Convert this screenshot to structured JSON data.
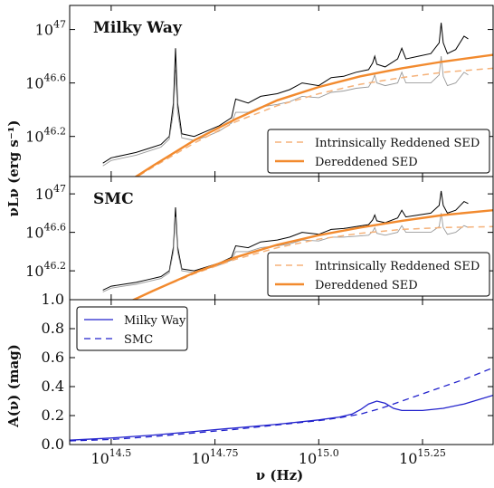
{
  "chart_data": [
    {
      "type": "line",
      "panel_title": "Milky Way",
      "ylabel": "νLν (erg s⁻¹)",
      "y_scale": "log",
      "y_ticks": [
        {
          "value": 46.2,
          "base": "10",
          "exp": "46.2"
        },
        {
          "value": 46.6,
          "base": "10",
          "exp": "46.6"
        },
        {
          "value": 47.0,
          "base": "10",
          "exp": "47"
        }
      ],
      "ylim_log": [
        45.9,
        47.18
      ],
      "xlim_log": [
        14.4,
        15.42
      ],
      "legend_position": "lower-right",
      "series": [
        {
          "name": "Intrinsically Reddened SED",
          "style": "dashed",
          "color": "#f5b27a",
          "x": [
            14.5,
            14.6,
            14.7,
            14.8,
            14.9,
            15.0,
            15.1,
            15.2,
            15.3,
            15.42
          ],
          "y": [
            45.78,
            45.97,
            46.15,
            46.31,
            46.43,
            46.52,
            46.59,
            46.64,
            46.68,
            46.71
          ]
        },
        {
          "name": "Dereddened SED",
          "style": "solid",
          "color": "#f28a2e",
          "x": [
            14.5,
            14.6,
            14.7,
            14.8,
            14.9,
            15.0,
            15.1,
            15.2,
            15.3,
            15.42
          ],
          "y": [
            45.78,
            45.98,
            46.17,
            46.33,
            46.47,
            46.57,
            46.65,
            46.71,
            46.76,
            46.81
          ]
        }
      ],
      "spectra": [
        {
          "color": "#000000",
          "x": [
            14.48,
            14.5,
            14.53,
            14.56,
            14.59,
            14.62,
            14.64,
            14.65,
            14.655,
            14.66,
            14.67,
            14.7,
            14.73,
            14.76,
            14.79,
            14.8,
            14.83,
            14.86,
            14.9,
            14.93,
            14.96,
            15.0,
            15.03,
            15.06,
            15.09,
            15.12,
            15.13,
            15.135,
            15.14,
            15.16,
            15.19,
            15.2,
            15.21,
            15.24,
            15.27,
            15.29,
            15.295,
            15.3,
            15.31,
            15.33,
            15.35,
            15.36
          ],
          "y": [
            46.0,
            46.04,
            46.06,
            46.08,
            46.11,
            46.14,
            46.2,
            46.45,
            46.86,
            46.45,
            46.22,
            46.2,
            46.24,
            46.28,
            46.34,
            46.48,
            46.45,
            46.5,
            46.52,
            46.55,
            46.6,
            46.58,
            46.64,
            46.65,
            46.68,
            46.7,
            46.75,
            46.8,
            46.74,
            46.72,
            46.78,
            46.86,
            46.78,
            46.8,
            46.82,
            46.9,
            47.05,
            46.9,
            46.82,
            46.85,
            46.95,
            46.93
          ]
        },
        {
          "color": "#999999",
          "x": [
            14.48,
            14.5,
            14.53,
            14.56,
            14.59,
            14.62,
            14.64,
            14.65,
            14.655,
            14.66,
            14.67,
            14.7,
            14.73,
            14.76,
            14.79,
            14.8,
            14.83,
            14.86,
            14.9,
            14.93,
            14.96,
            15.0,
            15.03,
            15.06,
            15.09,
            15.12,
            15.13,
            15.135,
            15.14,
            15.16,
            15.19,
            15.2,
            15.21,
            15.24,
            15.27,
            15.29,
            15.295,
            15.3,
            15.31,
            15.33,
            15.35,
            15.36
          ],
          "y": [
            45.98,
            46.02,
            46.04,
            46.06,
            46.09,
            46.12,
            46.18,
            46.38,
            46.7,
            46.38,
            46.19,
            46.17,
            46.2,
            46.24,
            46.3,
            46.38,
            46.38,
            46.42,
            46.44,
            46.46,
            46.5,
            46.49,
            46.53,
            46.54,
            46.56,
            46.57,
            46.62,
            46.66,
            46.6,
            46.58,
            46.6,
            46.68,
            46.6,
            46.6,
            46.6,
            46.66,
            46.8,
            46.65,
            46.58,
            46.6,
            46.68,
            46.66
          ]
        }
      ]
    },
    {
      "type": "line",
      "panel_title": "SMC",
      "ylabel": "νLν (erg s⁻¹)",
      "y_scale": "log",
      "y_ticks": [
        {
          "value": 46.2,
          "base": "10",
          "exp": "46.2"
        },
        {
          "value": 46.6,
          "base": "10",
          "exp": "46.6"
        },
        {
          "value": 47.0,
          "base": "10",
          "exp": "47"
        }
      ],
      "ylim_log": [
        45.9,
        47.18
      ],
      "xlim_log": [
        14.4,
        15.42
      ],
      "legend_position": "lower-right",
      "series": [
        {
          "name": "Intrinsically Reddened SED",
          "style": "dashed",
          "color": "#f5b27a",
          "x": [
            14.5,
            14.6,
            14.7,
            14.8,
            14.9,
            15.0,
            15.1,
            15.2,
            15.3,
            15.42
          ],
          "y": [
            45.8,
            45.99,
            46.17,
            46.32,
            46.44,
            46.53,
            46.59,
            46.63,
            46.65,
            46.66
          ]
        },
        {
          "name": "Dereddened SED",
          "style": "solid",
          "color": "#f28a2e",
          "x": [
            14.5,
            14.6,
            14.7,
            14.8,
            14.9,
            15.0,
            15.1,
            15.2,
            15.3,
            15.42
          ],
          "y": [
            45.79,
            45.99,
            46.18,
            46.34,
            46.47,
            46.57,
            46.65,
            46.72,
            46.78,
            46.83
          ]
        }
      ],
      "spectra": [
        {
          "color": "#000000",
          "x": [
            14.48,
            14.5,
            14.53,
            14.56,
            14.59,
            14.62,
            14.64,
            14.65,
            14.655,
            14.66,
            14.67,
            14.7,
            14.73,
            14.76,
            14.79,
            14.8,
            14.83,
            14.86,
            14.9,
            14.93,
            14.96,
            15.0,
            15.03,
            15.06,
            15.09,
            15.12,
            15.13,
            15.135,
            15.14,
            15.16,
            15.19,
            15.2,
            15.21,
            15.24,
            15.27,
            15.29,
            15.295,
            15.3,
            15.31,
            15.33,
            15.35,
            15.36
          ],
          "y": [
            46.0,
            46.04,
            46.06,
            46.08,
            46.11,
            46.14,
            46.2,
            46.45,
            46.86,
            46.45,
            46.22,
            46.2,
            46.24,
            46.28,
            46.34,
            46.46,
            46.44,
            46.5,
            46.52,
            46.55,
            46.6,
            46.58,
            46.63,
            46.64,
            46.66,
            46.68,
            46.73,
            46.78,
            46.72,
            46.7,
            46.75,
            46.83,
            46.76,
            46.78,
            46.8,
            46.88,
            47.03,
            46.88,
            46.8,
            46.83,
            46.92,
            46.9
          ]
        },
        {
          "color": "#999999",
          "x": [
            14.48,
            14.5,
            14.53,
            14.56,
            14.59,
            14.62,
            14.64,
            14.65,
            14.655,
            14.66,
            14.67,
            14.7,
            14.73,
            14.76,
            14.79,
            14.8,
            14.83,
            14.86,
            14.9,
            14.93,
            14.96,
            15.0,
            15.03,
            15.06,
            15.09,
            15.12,
            15.13,
            15.135,
            15.14,
            15.16,
            15.19,
            15.2,
            15.21,
            15.24,
            15.27,
            15.29,
            15.295,
            15.3,
            15.31,
            15.33,
            15.35,
            15.36
          ],
          "y": [
            45.98,
            46.02,
            46.04,
            46.06,
            46.09,
            46.12,
            46.18,
            46.4,
            46.76,
            46.4,
            46.2,
            46.18,
            46.22,
            46.26,
            46.31,
            46.4,
            46.4,
            46.44,
            46.46,
            46.48,
            46.52,
            46.51,
            46.55,
            46.55,
            46.56,
            46.57,
            46.61,
            46.65,
            46.59,
            46.57,
            46.6,
            46.67,
            46.6,
            46.6,
            46.6,
            46.66,
            46.8,
            46.65,
            46.58,
            46.6,
            46.67,
            46.65
          ]
        }
      ]
    },
    {
      "type": "line",
      "ylabel": "A(ν) (mag)",
      "xlabel": "ν (Hz)",
      "ylim": [
        0.0,
        1.0
      ],
      "y_ticks": [
        "0.0",
        "0.2",
        "0.4",
        "0.6",
        "0.8",
        "1.0"
      ],
      "y_tick_values": [
        0.0,
        0.2,
        0.4,
        0.6,
        0.8,
        1.0
      ],
      "xlim_log": [
        14.4,
        15.42
      ],
      "x_ticks": [
        {
          "value": 14.5,
          "base": "10",
          "exp": "14.5"
        },
        {
          "value": 14.75,
          "base": "10",
          "exp": "14.75"
        },
        {
          "value": 15.0,
          "base": "10",
          "exp": "15.0"
        },
        {
          "value": 15.25,
          "base": "10",
          "exp": "15.25"
        }
      ],
      "legend_position": "upper-left",
      "series": [
        {
          "name": "Milky Way",
          "style": "solid",
          "color": "#2222cc",
          "x": [
            14.4,
            14.5,
            14.6,
            14.7,
            14.8,
            14.9,
            15.0,
            15.05,
            15.08,
            15.1,
            15.12,
            15.14,
            15.16,
            15.18,
            15.2,
            15.25,
            15.3,
            15.35,
            15.42
          ],
          "y": [
            0.03,
            0.045,
            0.065,
            0.09,
            0.115,
            0.14,
            0.17,
            0.19,
            0.21,
            0.24,
            0.28,
            0.3,
            0.285,
            0.25,
            0.235,
            0.235,
            0.25,
            0.28,
            0.34
          ]
        },
        {
          "name": "SMC",
          "style": "dashed",
          "color": "#2222cc",
          "x": [
            14.4,
            14.5,
            14.6,
            14.7,
            14.8,
            14.9,
            15.0,
            15.05,
            15.1,
            15.15,
            15.2,
            15.25,
            15.3,
            15.35,
            15.42
          ],
          "y": [
            0.025,
            0.035,
            0.055,
            0.08,
            0.105,
            0.135,
            0.165,
            0.185,
            0.21,
            0.25,
            0.3,
            0.35,
            0.4,
            0.45,
            0.53
          ]
        }
      ]
    }
  ]
}
